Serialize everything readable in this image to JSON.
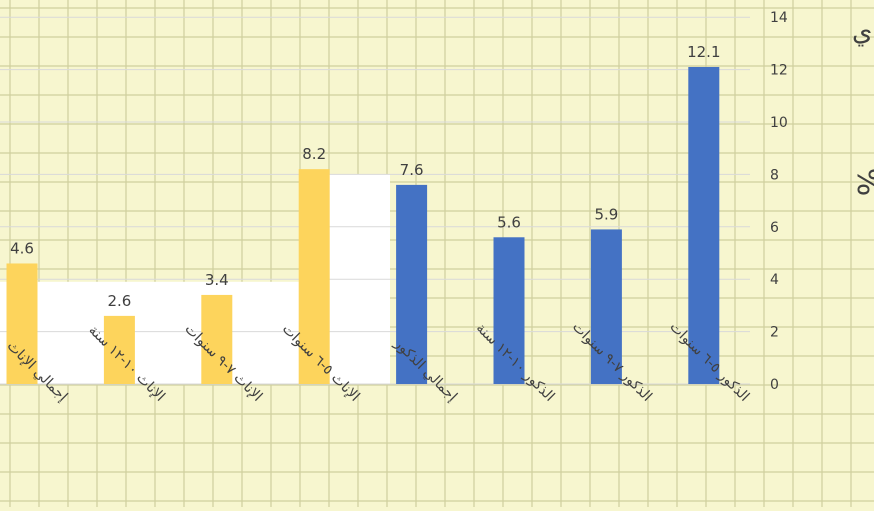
{
  "chart_data": {
    "type": "bar",
    "categories": [
      "إجمالي الإناث",
      "الإناث ١٠-١٢ سنة",
      "الإناث ٧-٩ سنوات",
      "الإناث ٥-٦ سنوات",
      "إجمالي الذكور",
      "الذكور ١٠-١٢ سنة",
      "الذكور ٧-٩ سنوات",
      "الذكور ٥-٦ سنوات"
    ],
    "values": [
      4.6,
      2.6,
      3.4,
      8.2,
      7.6,
      5.6,
      5.9,
      12.1
    ],
    "value_labels": [
      "4.6",
      "2.6",
      "3.4",
      "8.2",
      "7.6",
      "5.6",
      "5.9",
      "12.1"
    ],
    "bar_colors": [
      "#fdd45c",
      "#fdd45c",
      "#fdd45c",
      "#fdd45c",
      "#4472c4",
      "#4472c4",
      "#4472c4",
      "#4472c4"
    ],
    "ylim": [
      0,
      14
    ],
    "yticks": [
      0,
      2,
      4,
      6,
      8,
      10,
      12,
      14
    ],
    "ylabel": "%",
    "y_axis_side": "right",
    "grid": true,
    "title_fragment": "ي:"
  },
  "colors": {
    "paper": "#f7f6cf",
    "paper_grid": "#cfcf9e",
    "plot_bg": "#ffffff",
    "plot_grid": "#d9d9d9",
    "female": "#fdd45c",
    "male": "#4472c4",
    "text": "#404040"
  }
}
